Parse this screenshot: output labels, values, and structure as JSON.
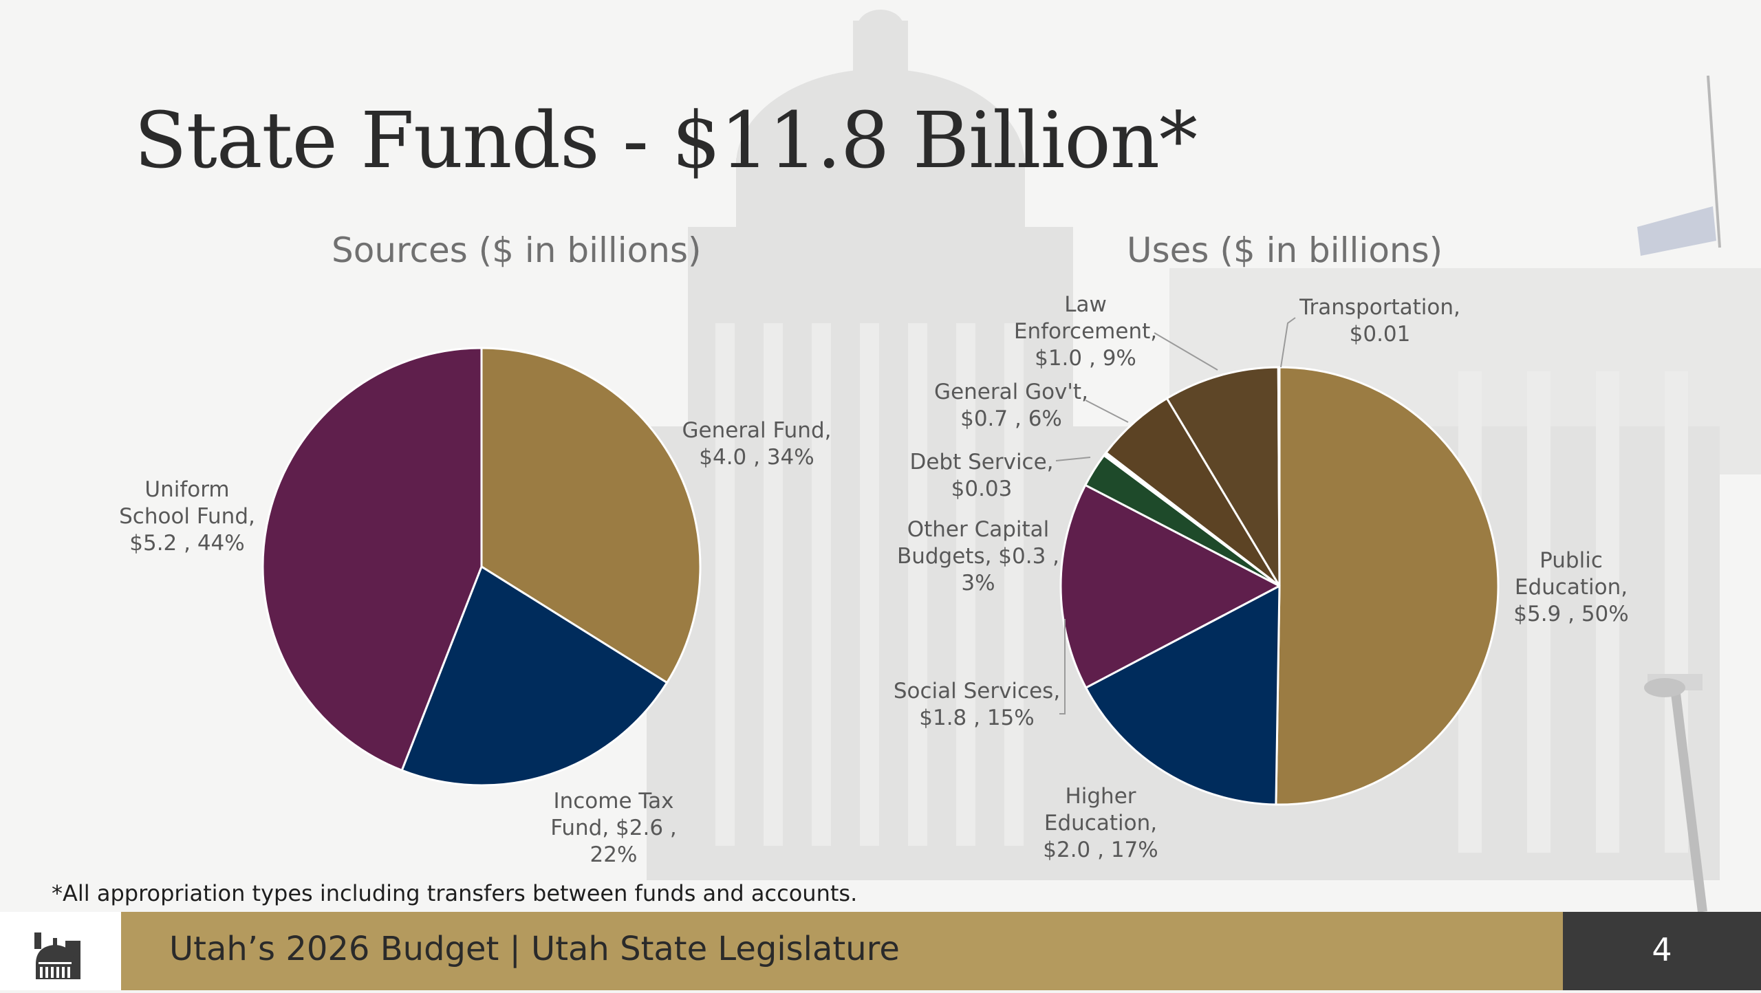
{
  "slide": {
    "title": "State Funds - $11.8 Billion*",
    "footnote": "*All appropriation types including transfers between funds and accounts.",
    "footer_text": "Utah’s 2026 Budget | Utah State Legislature",
    "page_number": "4",
    "logo_icon": "capitol-dome-icon"
  },
  "colors": {
    "gold": "#9b7c43",
    "navy": "#002c5c",
    "purple": "#5f1f4c",
    "dark_brown": "#5e4627",
    "brown": "#5c4324",
    "green": "#1e4a2a",
    "footer_band": "#b49a5e",
    "footer_dark": "#3a3a3a"
  },
  "chart_data": [
    {
      "type": "pie",
      "title": "Sources ($ in billions)",
      "slices": [
        {
          "name": "General Fund",
          "value": 4.0,
          "percent": 34,
          "color": "#9b7c43",
          "label_lines": [
            "General Fund,",
            "$4.0 , 34%"
          ]
        },
        {
          "name": "Income Tax Fund",
          "value": 2.6,
          "percent": 22,
          "color": "#002c5c",
          "label_lines": [
            "Income Tax",
            "Fund, $2.6 ,",
            "22%"
          ]
        },
        {
          "name": "Uniform School Fund",
          "value": 5.2,
          "percent": 44,
          "color": "#5f1f4c",
          "label_lines": [
            "Uniform",
            "School Fund,",
            "$5.2 , 44%"
          ]
        }
      ]
    },
    {
      "type": "pie",
      "title": "Uses ($ in billions)",
      "slices": [
        {
          "name": "Public Education",
          "value": 5.9,
          "percent": 50,
          "color": "#9b7c43",
          "label_lines": [
            "Public",
            "Education,",
            "$5.9 , 50%"
          ]
        },
        {
          "name": "Higher Education",
          "value": 2.0,
          "percent": 17,
          "color": "#002c5c",
          "label_lines": [
            "Higher",
            "Education,",
            "$2.0 , 17%"
          ]
        },
        {
          "name": "Social Services",
          "value": 1.8,
          "percent": 15,
          "color": "#5f1f4c",
          "label_lines": [
            "Social Services,",
            "$1.8 , 15%"
          ]
        },
        {
          "name": "Other Capital Budgets",
          "value": 0.3,
          "percent": 3,
          "color": "#1e4a2a",
          "label_lines": [
            "Other Capital",
            "Budgets, $0.3 ,",
            "3%"
          ]
        },
        {
          "name": "Debt Service",
          "value": 0.03,
          "color": "#ffffff",
          "label_lines": [
            "Debt Service,",
            "$0.03"
          ]
        },
        {
          "name": "General Gov't",
          "value": 0.7,
          "percent": 6,
          "color": "#5c4324",
          "label_lines": [
            "General Gov't,",
            "$0.7 , 6%"
          ]
        },
        {
          "name": "Law Enforcement",
          "value": 1.0,
          "percent": 9,
          "color": "#5e4627",
          "label_lines": [
            "Law",
            "Enforcement,",
            "$1.0 , 9%"
          ]
        },
        {
          "name": "Transportation",
          "value": 0.01,
          "color": "#ffffff",
          "label_lines": [
            "Transportation,",
            "$0.01"
          ]
        }
      ]
    }
  ]
}
